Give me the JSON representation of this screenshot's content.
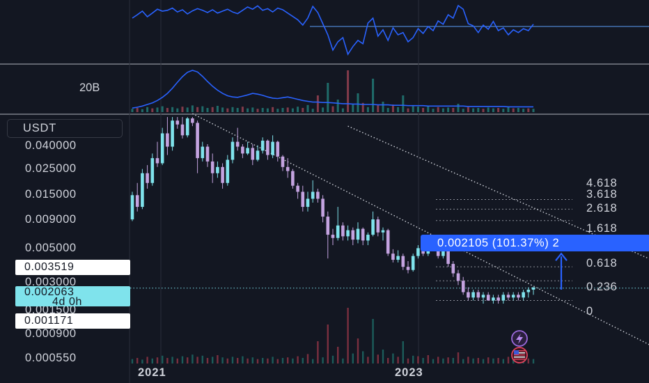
{
  "chart_data": [
    {
      "type": "line",
      "pane": "oscillator",
      "series": [
        {
          "values": [
            0.3,
            0.42,
            0.55,
            0.35,
            0.48,
            0.62,
            0.55,
            0.58,
            0.66,
            0.52,
            0.6,
            0.45,
            0.56,
            0.64,
            0.58,
            0.5,
            0.6,
            0.48,
            0.55,
            0.62,
            0.52,
            0.46,
            0.58,
            0.7,
            0.62,
            0.74,
            0.58,
            0.64,
            0.52,
            0.66,
            0.6,
            0.48,
            0.36,
            0.24,
            0.05,
            0.3,
            0.72,
            0.5,
            0.1,
            -0.3,
            -0.85,
            -0.55,
            -0.4,
            -1.0,
            -0.72,
            -0.5,
            -0.62,
            0.12,
            0.3,
            -0.35,
            -0.12,
            -0.5,
            -0.05,
            -0.3,
            -0.22,
            -0.55,
            -0.4,
            -0.08,
            -0.25,
            0.0,
            -0.15,
            0.2,
            0.08,
            0.42,
            0.3,
            0.75,
            0.62,
            0.1,
            0.02,
            -0.22,
            0.05,
            -0.1,
            0.18,
            -0.15,
            -0.05,
            -0.3,
            -0.12,
            -0.22,
            -0.08,
            -0.15,
            0.08
          ]
        }
      ]
    },
    {
      "type": "bar",
      "pane": "volume",
      "ylabel": "20B",
      "series": [
        {
          "values": [
            0.08,
            0.1,
            0.07,
            0.12,
            0.09,
            0.11,
            0.14,
            0.1,
            0.12,
            0.09,
            0.13,
            0.11,
            0.16,
            0.12,
            0.14,
            0.1,
            0.12,
            0.15,
            0.11,
            0.09,
            0.12,
            0.1,
            0.13,
            0.09,
            0.11,
            0.08,
            0.1,
            0.09,
            0.12,
            0.08,
            0.1,
            0.11,
            0.09,
            0.13,
            0.1,
            0.17,
            0.08,
            0.4,
            0.11,
            0.7,
            0.14,
            0.3,
            0.09,
            1.0,
            0.18,
            0.45,
            0.22,
            0.12,
            0.8,
            0.16,
            0.25,
            0.1,
            0.18,
            0.12,
            0.4,
            0.09,
            0.14,
            0.13,
            0.1,
            0.15,
            0.08,
            0.12,
            0.09,
            0.11,
            0.1,
            0.2,
            0.08,
            0.12,
            0.09,
            0.1,
            0.08,
            0.11,
            0.09,
            0.1,
            0.08,
            0.12,
            0.09,
            0.1,
            0.08,
            0.09,
            0.08
          ]
        },
        {
          "values": [
            0.05,
            0.07,
            0.1,
            0.14,
            0.18,
            0.24,
            0.32,
            0.42,
            0.55,
            0.7,
            0.84,
            0.95,
            1.0,
            0.96,
            0.85,
            0.72,
            0.6,
            0.5,
            0.42,
            0.36,
            0.33,
            0.32,
            0.35,
            0.38,
            0.42,
            0.4,
            0.37,
            0.33,
            0.3,
            0.29,
            0.31,
            0.33,
            0.3,
            0.27,
            0.24,
            0.22,
            0.2,
            0.2,
            0.19,
            0.19,
            0.18,
            0.17,
            0.16,
            0.16,
            0.15,
            0.15,
            0.14,
            0.14,
            0.14,
            0.13,
            0.13,
            0.13,
            0.12,
            0.12,
            0.12,
            0.11,
            0.11,
            0.11,
            0.11,
            0.1,
            0.1,
            0.1,
            0.1,
            0.1,
            0.1,
            0.1,
            0.1,
            0.09,
            0.09,
            0.09,
            0.09,
            0.09,
            0.09,
            0.09,
            0.09,
            0.08,
            0.08,
            0.08,
            0.08,
            0.08,
            0.08
          ]
        }
      ]
    },
    {
      "type": "candlestick",
      "pane": "price",
      "scale": "log",
      "ylim": [
        0.00045,
        0.07
      ],
      "x_ticks": [
        "2021",
        "2023"
      ],
      "y_ticks": [
        "0.040000",
        "0.025000",
        "0.015000",
        "0.009000",
        "0.005000",
        "0.003000",
        "0.001500",
        "0.000900",
        "0.000550"
      ],
      "y_tick_values": [
        0.04,
        0.025,
        0.015,
        0.009,
        0.005,
        0.003,
        0.0015,
        0.0009,
        0.00055
      ],
      "ohlc": [
        [
          0.0085,
          0.015,
          0.0082,
          0.014
        ],
        [
          0.014,
          0.018,
          0.01,
          0.011
        ],
        [
          0.011,
          0.024,
          0.0105,
          0.022
        ],
        [
          0.022,
          0.026,
          0.016,
          0.018
        ],
        [
          0.018,
          0.033,
          0.017,
          0.03
        ],
        [
          0.03,
          0.042,
          0.025,
          0.027
        ],
        [
          0.027,
          0.056,
          0.026,
          0.05
        ],
        [
          0.05,
          0.07,
          0.032,
          0.038
        ],
        [
          0.038,
          0.07,
          0.035,
          0.065
        ],
        [
          0.065,
          0.07,
          0.055,
          0.06
        ],
        [
          0.06,
          0.07,
          0.045,
          0.048
        ],
        [
          0.048,
          0.07,
          0.046,
          0.068
        ],
        [
          0.068,
          0.07,
          0.058,
          0.062
        ],
        [
          0.062,
          0.065,
          0.022,
          0.03
        ],
        [
          0.03,
          0.042,
          0.028,
          0.038
        ],
        [
          0.038,
          0.04,
          0.025,
          0.028
        ],
        [
          0.028,
          0.033,
          0.018,
          0.022
        ],
        [
          0.022,
          0.028,
          0.02,
          0.025
        ],
        [
          0.025,
          0.027,
          0.016,
          0.018
        ],
        [
          0.018,
          0.032,
          0.017,
          0.029
        ],
        [
          0.029,
          0.046,
          0.027,
          0.042
        ],
        [
          0.042,
          0.056,
          0.035,
          0.038
        ],
        [
          0.038,
          0.04,
          0.03,
          0.033
        ],
        [
          0.033,
          0.042,
          0.032,
          0.037
        ],
        [
          0.037,
          0.04,
          0.026,
          0.029
        ],
        [
          0.029,
          0.039,
          0.028,
          0.035
        ],
        [
          0.035,
          0.046,
          0.033,
          0.043
        ],
        [
          0.043,
          0.044,
          0.029,
          0.032
        ],
        [
          0.032,
          0.048,
          0.03,
          0.042
        ],
        [
          0.042,
          0.043,
          0.028,
          0.031
        ],
        [
          0.031,
          0.032,
          0.023,
          0.025
        ],
        [
          0.025,
          0.03,
          0.02,
          0.023
        ],
        [
          0.023,
          0.024,
          0.016,
          0.017
        ],
        [
          0.017,
          0.018,
          0.013,
          0.015
        ],
        [
          0.015,
          0.017,
          0.01,
          0.011
        ],
        [
          0.011,
          0.015,
          0.01,
          0.013
        ],
        [
          0.013,
          0.019,
          0.012,
          0.015
        ],
        [
          0.015,
          0.016,
          0.012,
          0.013
        ],
        [
          0.013,
          0.014,
          0.008,
          0.009
        ],
        [
          0.009,
          0.01,
          0.0038,
          0.0062
        ],
        [
          0.0062,
          0.007,
          0.005,
          0.0058
        ],
        [
          0.0058,
          0.011,
          0.0055,
          0.0075
        ],
        [
          0.0075,
          0.008,
          0.0055,
          0.006
        ],
        [
          0.006,
          0.0075,
          0.0055,
          0.0068
        ],
        [
          0.0068,
          0.0072,
          0.005,
          0.0056
        ],
        [
          0.0056,
          0.008,
          0.0052,
          0.007
        ],
        [
          0.007,
          0.0072,
          0.005,
          0.0055
        ],
        [
          0.0055,
          0.0065,
          0.005,
          0.0062
        ],
        [
          0.0062,
          0.01,
          0.006,
          0.0085
        ],
        [
          0.0085,
          0.009,
          0.006,
          0.0065
        ],
        [
          0.0065,
          0.0072,
          0.0055,
          0.0068
        ],
        [
          0.0068,
          0.007,
          0.004,
          0.0042
        ],
        [
          0.0042,
          0.0046,
          0.0035,
          0.0037
        ],
        [
          0.0037,
          0.0045,
          0.0035,
          0.004
        ],
        [
          0.004,
          0.0042,
          0.003,
          0.0032
        ],
        [
          0.0032,
          0.0036,
          0.0028,
          0.003
        ],
        [
          0.003,
          0.0042,
          0.0029,
          0.004
        ],
        [
          0.004,
          0.005,
          0.0038,
          0.0047
        ],
        [
          0.0047,
          0.0052,
          0.004,
          0.0042
        ],
        [
          0.0042,
          0.005,
          0.004,
          0.0046
        ],
        [
          0.0046,
          0.0054,
          0.0044,
          0.005
        ],
        [
          0.005,
          0.0052,
          0.0038,
          0.004
        ],
        [
          0.004,
          0.0048,
          0.0038,
          0.0044
        ],
        [
          0.0044,
          0.0046,
          0.0032,
          0.0034
        ],
        [
          0.0034,
          0.0036,
          0.0026,
          0.0028
        ],
        [
          0.0028,
          0.003,
          0.0022,
          0.0024
        ],
        [
          0.0024,
          0.0026,
          0.0018,
          0.0019
        ],
        [
          0.0019,
          0.0021,
          0.0016,
          0.0017
        ],
        [
          0.0017,
          0.002,
          0.0016,
          0.0019
        ],
        [
          0.0019,
          0.002,
          0.0016,
          0.0017
        ],
        [
          0.0017,
          0.0019,
          0.0015,
          0.0018
        ],
        [
          0.0018,
          0.0019,
          0.0016,
          0.0016
        ],
        [
          0.0016,
          0.0018,
          0.0015,
          0.0017
        ],
        [
          0.0017,
          0.0018,
          0.0015,
          0.0016
        ],
        [
          0.0016,
          0.0019,
          0.0015,
          0.0018
        ],
        [
          0.0018,
          0.0019,
          0.0016,
          0.0017
        ],
        [
          0.0017,
          0.0019,
          0.0016,
          0.0018
        ],
        [
          0.0018,
          0.0019,
          0.0016,
          0.0017
        ],
        [
          0.0017,
          0.002,
          0.0016,
          0.0019
        ],
        [
          0.0019,
          0.0021,
          0.0017,
          0.002
        ],
        [
          0.002,
          0.0021,
          0.0018,
          0.0021
        ]
      ],
      "trendlines": [
        {
          "from": [
            12,
            0.075
          ],
          "to": [
            110,
            0.00045
          ],
          "style": "dotted"
        },
        {
          "from": [
            43,
            0.058
          ],
          "to": [
            115,
            0.0022
          ],
          "style": "dotted"
        }
      ],
      "fibonacci": {
        "levels": [
          "4.618",
          "3.618",
          "2.618",
          "1.618",
          "0.618",
          "0.236",
          "0"
        ],
        "level_values": [
          0.0128,
          0.0105,
          0.0083,
          0.006,
          0.0032,
          0.0024,
          0.0016
        ]
      },
      "price_labels": {
        "upper": "0.003519",
        "current": "0.002063",
        "countdown": "4d 0h",
        "lower": "0.001171"
      },
      "measure": {
        "text": "0.002105 (101.37%) 2",
        "from": 0.002,
        "to": 0.0042
      }
    }
  ],
  "ui": {
    "symbol_chip": "USDT",
    "volume_scale": "20B",
    "icons": [
      "lightning-icon",
      "us-flag-icon"
    ],
    "colors": {
      "background": "#131722",
      "up": "#7fe3ec",
      "down": "#c4a3e0",
      "oscillator": "#2962ff",
      "baseline": "#5b9cf6",
      "price_tag": "#2962ff",
      "current_price": "#7fe3ec",
      "level_box": "#ffffff",
      "fib_line": "#8c8f99"
    }
  }
}
